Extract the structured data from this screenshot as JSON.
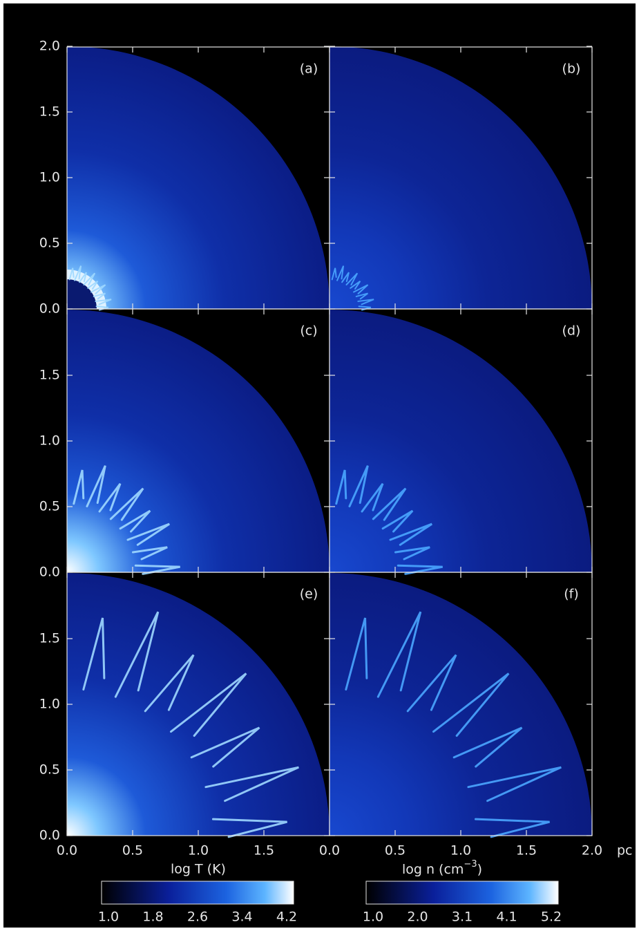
{
  "figure": {
    "panels": [
      {
        "label": "(a)"
      },
      {
        "label": "(b)"
      },
      {
        "label": "(c)"
      },
      {
        "label": "(d)"
      },
      {
        "label": "(e)"
      },
      {
        "label": "(f)"
      }
    ],
    "y_ticks": [
      [
        {
          "value": 0,
          "label": "0.0"
        },
        {
          "value": 0.5,
          "label": "0.5"
        },
        {
          "value": 1,
          "label": "1.0"
        },
        {
          "value": 1.5,
          "label": "1.5"
        },
        {
          "value": 2,
          "label": "2.0"
        }
      ],
      [
        {
          "value": 0,
          "label": "0.0"
        },
        {
          "value": 0.5,
          "label": "0.5"
        },
        {
          "value": 1,
          "label": "1.0"
        },
        {
          "value": 1.5,
          "label": "1.5"
        }
      ],
      [
        {
          "value": 0,
          "label": "0.0"
        },
        {
          "value": 0.5,
          "label": "0.5"
        },
        {
          "value": 1,
          "label": "1.0"
        },
        {
          "value": 1.5,
          "label": "1.5"
        }
      ]
    ],
    "x_ticks": [
      [
        {
          "value": 0,
          "label": "0.0"
        },
        {
          "value": 0.5,
          "label": "0.5"
        },
        {
          "value": 1,
          "label": "1.0"
        },
        {
          "value": 1.5,
          "label": "1.5"
        }
      ],
      [
        {
          "value": 0,
          "label": "0.0"
        },
        {
          "value": 0.5,
          "label": "0.5"
        },
        {
          "value": 1,
          "label": "1.0"
        },
        {
          "value": 1.5,
          "label": "1.5"
        },
        {
          "value": 2,
          "label": "2.0"
        }
      ]
    ],
    "x_unit": "pc",
    "colorbars": [
      {
        "label": "log T (K)",
        "ticks": [
          "1.0",
          "1.8",
          "2.6",
          "3.4",
          "4.2"
        ]
      },
      {
        "label": {
          "text": "log n (cm",
          "superscript": "−3",
          "close": ")"
        },
        "ticks": [
          "1.0",
          "2.0",
          "3.1",
          "4.1",
          "5.2"
        ]
      }
    ]
  }
}
